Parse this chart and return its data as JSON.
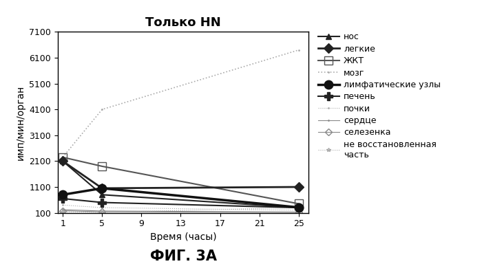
{
  "title": "Только HN",
  "xlabel": "Время (часы)",
  "ylabel": "имп/мин/орган",
  "caption": "ФИГ. 3А",
  "x_ticks": [
    1,
    5,
    9,
    13,
    17,
    21,
    25
  ],
  "x_data": [
    1,
    5,
    25
  ],
  "ylim": [
    100,
    7100
  ],
  "yticks": [
    100,
    1100,
    2100,
    3100,
    4100,
    5100,
    6100,
    7100
  ],
  "series": [
    {
      "label": "нос",
      "values": [
        2100,
        800,
        300
      ],
      "color": "#222222",
      "marker": "^",
      "linestyle": "-",
      "linewidth": 1.5,
      "markersize": 6,
      "fillstyle": "full",
      "zorder": 5
    },
    {
      "label": "легкие",
      "values": [
        2100,
        1050,
        1100
      ],
      "color": "#222222",
      "marker": "D",
      "linestyle": "-",
      "linewidth": 2.0,
      "markersize": 7,
      "fillstyle": "full",
      "zorder": 5
    },
    {
      "label": "ЖКТ",
      "values": [
        2250,
        1900,
        450
      ],
      "color": "#555555",
      "marker": "s",
      "linestyle": "-",
      "linewidth": 1.5,
      "markersize": 9,
      "fillstyle": "none",
      "zorder": 4
    },
    {
      "label": "мозг",
      "values": [
        2250,
        4100,
        6400
      ],
      "color": "#aaaaaa",
      "marker": ".",
      "linestyle": ":",
      "linewidth": 1.2,
      "markersize": 2,
      "fillstyle": "full",
      "zorder": 3
    },
    {
      "label": "лимфатические узлы",
      "values": [
        800,
        1050,
        310
      ],
      "color": "#111111",
      "marker": "o",
      "linestyle": "-",
      "linewidth": 2.5,
      "markersize": 9,
      "fillstyle": "full",
      "zorder": 6
    },
    {
      "label": "печень",
      "values": [
        650,
        500,
        300
      ],
      "color": "#222222",
      "marker": "P",
      "linestyle": "-",
      "linewidth": 1.5,
      "markersize": 8,
      "fillstyle": "full",
      "zorder": 5
    },
    {
      "label": "почки",
      "values": [
        400,
        300,
        200
      ],
      "color": "#aaaaaa",
      "marker": ".",
      "linestyle": ":",
      "linewidth": 0.8,
      "markersize": 2,
      "fillstyle": "full",
      "zorder": 2
    },
    {
      "label": "сердце",
      "values": [
        220,
        170,
        130
      ],
      "color": "#888888",
      "marker": ".",
      "linestyle": "-",
      "linewidth": 0.8,
      "markersize": 2,
      "fillstyle": "full",
      "zorder": 2
    },
    {
      "label": "селезенка",
      "values": [
        180,
        140,
        120
      ],
      "color": "#888888",
      "marker": "D",
      "linestyle": "-",
      "linewidth": 0.8,
      "markersize": 5,
      "fillstyle": "none",
      "zorder": 2
    },
    {
      "label": "не восстановленная\nчасть",
      "values": [
        140,
        120,
        300
      ],
      "color": "#aaaaaa",
      "marker": "*",
      "linestyle": ":",
      "linewidth": 0.8,
      "markersize": 4,
      "fillstyle": "none",
      "zorder": 2
    }
  ],
  "bg_color": "#ffffff",
  "title_fontsize": 13,
  "label_fontsize": 10,
  "tick_fontsize": 9,
  "legend_fontsize": 9,
  "caption_fontsize": 15
}
